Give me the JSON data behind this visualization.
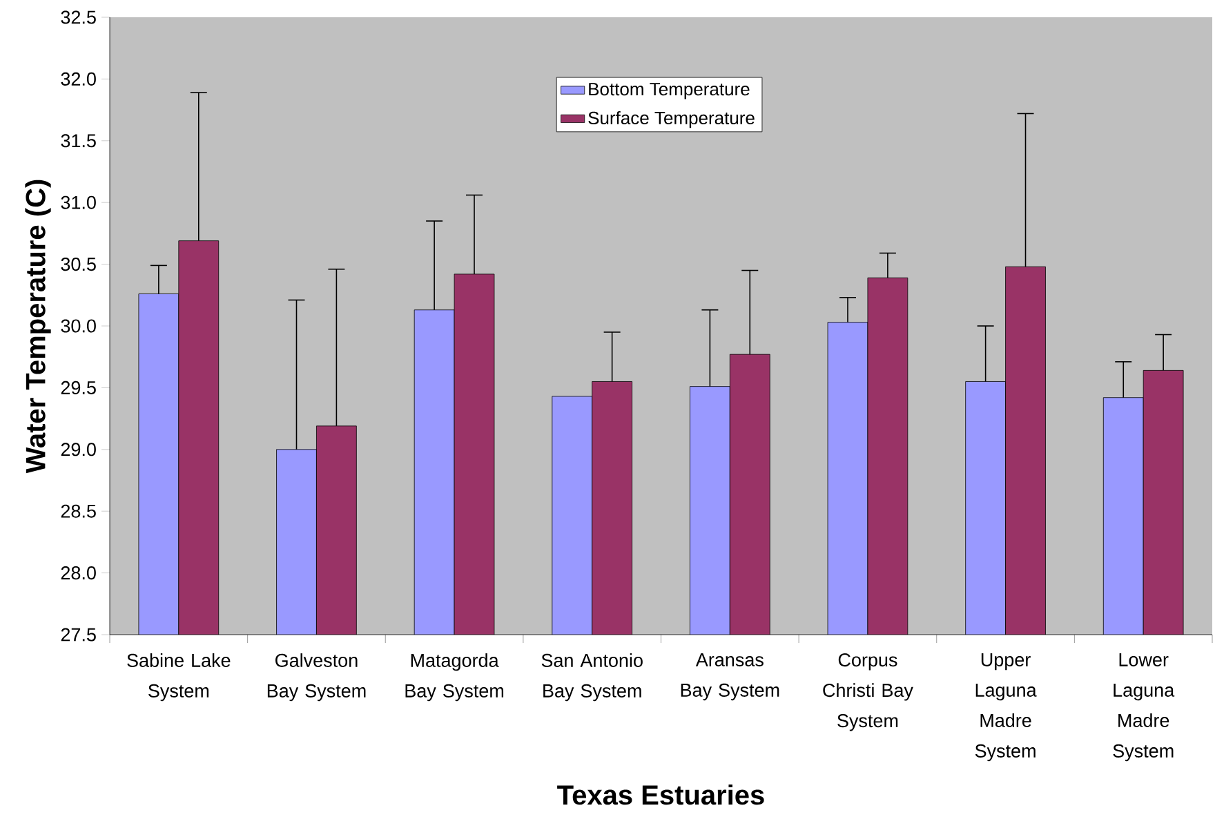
{
  "chart_data": {
    "type": "bar",
    "xlabel": "Texas Estuaries",
    "ylabel": "Water Temperature (C)",
    "categories": [
      "Sabine Lake System",
      "Galveston Bay System",
      "Matagorda Bay System",
      "San Antonio Bay System",
      "Aransas Bay System",
      "Corpus Christi Bay System",
      "Upper Laguna Madre System",
      "Lower Laguna Madre System"
    ],
    "series": [
      {
        "name": "Bottom Temperature",
        "color": "#9999ff",
        "values": [
          30.26,
          29.0,
          30.13,
          29.43,
          29.51,
          30.03,
          29.55,
          29.42
        ],
        "errors": [
          [
            30.26,
            30.49
          ],
          [
            29.0,
            30.21
          ],
          [
            30.13,
            30.85
          ],
          null,
          [
            29.51,
            30.13
          ],
          [
            30.03,
            30.23
          ],
          [
            29.55,
            30.0
          ],
          [
            29.42,
            29.71
          ]
        ]
      },
      {
        "name": "Surface Temperature",
        "color": "#993366",
        "values": [
          30.69,
          29.19,
          30.42,
          29.55,
          29.77,
          30.39,
          30.48,
          29.64
        ],
        "errors": [
          [
            30.69,
            31.89
          ],
          [
            29.19,
            30.46
          ],
          [
            30.42,
            31.06
          ],
          [
            29.55,
            29.95
          ],
          [
            29.77,
            30.45
          ],
          [
            30.39,
            30.59
          ],
          [
            30.48,
            31.72
          ],
          [
            29.64,
            29.93
          ]
        ]
      }
    ],
    "ylim": [
      27.5,
      32.5
    ],
    "yticks": [
      {
        "value": 27.5,
        "label": "27.5"
      },
      {
        "value": 28.0,
        "label": "28.0"
      },
      {
        "value": 28.5,
        "label": "28.5"
      },
      {
        "value": 29.0,
        "label": "29.0"
      },
      {
        "value": 29.5,
        "label": "29.5"
      },
      {
        "value": 30.0,
        "label": "30.0"
      },
      {
        "value": 30.5,
        "label": "30.5"
      },
      {
        "value": 31.0,
        "label": "31.0"
      },
      {
        "value": 31.5,
        "label": "31.5"
      },
      {
        "value": 32.0,
        "label": "32.0"
      },
      {
        "value": 32.5,
        "label": "32.5"
      }
    ],
    "legend": "top"
  }
}
